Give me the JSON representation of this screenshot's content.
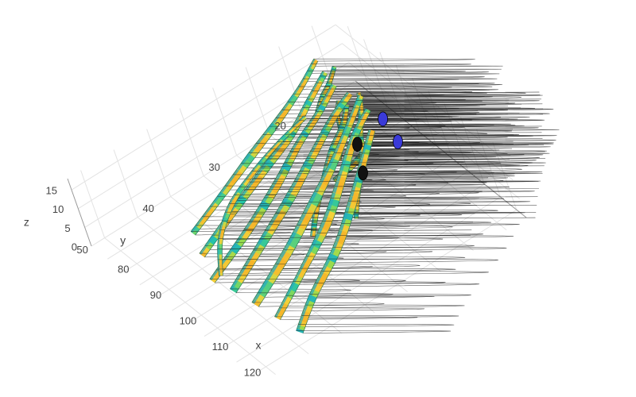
{
  "chart_data": {
    "type": "3d-streamtube",
    "title": "",
    "colorscale": [
      "#2f2fd0",
      "#2b8fd8",
      "#25c4a8",
      "#8fdc50",
      "#f2d23a",
      "#f5b52a"
    ],
    "grid": true,
    "axes": {
      "x": {
        "label": "x",
        "ticks": [
          80,
          90,
          100,
          110,
          120
        ],
        "range": [
          75,
          128
        ]
      },
      "y": {
        "label": "y",
        "ticks": [
          20,
          30,
          40,
          50
        ],
        "tick_labels": [
          "20",
          "30",
          "40",
          "50"
        ],
        "range": [
          12,
          52
        ]
      },
      "z": {
        "label": "z",
        "ticks": [
          0,
          5,
          10,
          15
        ],
        "range": [
          0,
          18
        ]
      }
    },
    "tubes": [
      {
        "points": [
          [
            124,
            44,
            2
          ],
          [
            118,
            39,
            2
          ],
          [
            111,
            32,
            2
          ],
          [
            104,
            26,
            3
          ],
          [
            97,
            21,
            3
          ],
          [
            92,
            17,
            4
          ]
        ],
        "widths": [
          9,
          10,
          11,
          11,
          9,
          8
        ]
      },
      {
        "points": [
          [
            120,
            45,
            4
          ],
          [
            114,
            38,
            5
          ],
          [
            107,
            31,
            5
          ],
          [
            100,
            25,
            6
          ],
          [
            94,
            20,
            7
          ],
          [
            90,
            16,
            7
          ]
        ],
        "widths": [
          8,
          9,
          12,
          11,
          9,
          7
        ]
      },
      {
        "points": [
          [
            116,
            46,
            6
          ],
          [
            110,
            38,
            7
          ],
          [
            104,
            31,
            8
          ],
          [
            98,
            25,
            8
          ],
          [
            93,
            20,
            9
          ],
          [
            89,
            16,
            10
          ]
        ],
        "widths": [
          10,
          12,
          12,
          10,
          8,
          7
        ]
      },
      {
        "points": [
          [
            112,
            47,
            8
          ],
          [
            106,
            39,
            9
          ],
          [
            100,
            32,
            9
          ],
          [
            95,
            26,
            10
          ],
          [
            91,
            21,
            11
          ],
          [
            88,
            17,
            11
          ]
        ],
        "widths": [
          9,
          11,
          12,
          10,
          9,
          8
        ]
      },
      {
        "points": [
          [
            108,
            48,
            9
          ],
          [
            103,
            40,
            10
          ],
          [
            98,
            33,
            11
          ],
          [
            93,
            27,
            12
          ],
          [
            89,
            22,
            12
          ],
          [
            86,
            18,
            13
          ]
        ],
        "widths": [
          8,
          10,
          11,
          9,
          8,
          7
        ]
      },
      {
        "points": [
          [
            104,
            47,
            12
          ],
          [
            99,
            40,
            12
          ],
          [
            95,
            33,
            13
          ],
          [
            91,
            27,
            13
          ],
          [
            87,
            22,
            14
          ],
          [
            84,
            18,
            15
          ]
        ],
        "widths": [
          8,
          9,
          10,
          9,
          8,
          7
        ]
      },
      {
        "points": [
          [
            100,
            46,
            14
          ],
          [
            96,
            40,
            14
          ],
          [
            92,
            33,
            15
          ],
          [
            88,
            27,
            15
          ],
          [
            85,
            22,
            16
          ],
          [
            82,
            18,
            17
          ]
        ],
        "widths": [
          7,
          8,
          10,
          9,
          7,
          6
        ]
      },
      {
        "points": [
          [
            109,
            47,
            10
          ],
          [
            104,
            44,
            13
          ],
          [
            100,
            40,
            15
          ],
          [
            97,
            35,
            16
          ],
          [
            95,
            30,
            17
          ],
          [
            93,
            25,
            17
          ]
        ],
        "widths": [
          5,
          6,
          7,
          6,
          5,
          5
        ]
      },
      {
        "points": [
          [
            106,
            33,
            3
          ],
          [
            102,
            30,
            5
          ],
          [
            99,
            27,
            7
          ],
          [
            96,
            24,
            9
          ],
          [
            94,
            21,
            11
          ],
          [
            92,
            19,
            13
          ]
        ],
        "widths": [
          6,
          7,
          8,
          8,
          7,
          6
        ]
      },
      {
        "points": [
          [
            110,
            28,
            5
          ],
          [
            105,
            25,
            6
          ],
          [
            101,
            22,
            8
          ],
          [
            97,
            20,
            10
          ],
          [
            94,
            18,
            12
          ],
          [
            92,
            17,
            14
          ]
        ],
        "widths": [
          5,
          6,
          7,
          7,
          6,
          5
        ]
      },
      {
        "points": [
          [
            96,
            25,
            2
          ],
          [
            95,
            22,
            2
          ],
          [
            94,
            20,
            2
          ],
          [
            93,
            18,
            3
          ]
        ],
        "widths": [
          8,
          8,
          7,
          6
        ]
      },
      {
        "points": [
          [
            94,
            23,
            4
          ],
          [
            92,
            21,
            7
          ],
          [
            90,
            20,
            10
          ],
          [
            89,
            19,
            12
          ]
        ],
        "widths": [
          6,
          6,
          5,
          5
        ]
      },
      {
        "points": [
          [
            88,
            22,
            11
          ],
          [
            86,
            20,
            12
          ],
          [
            84,
            18,
            12
          ],
          [
            82,
            16,
            13
          ]
        ],
        "widths": [
          5,
          6,
          6,
          5
        ]
      }
    ],
    "cones": [
      {
        "position": [
          106,
          24,
          10
        ],
        "color": "#111111"
      },
      {
        "position": [
          101,
          22,
          12
        ],
        "color": "#111111"
      },
      {
        "position": [
          98,
          16,
          4
        ],
        "color": "#3a3ad8"
      },
      {
        "position": [
          95,
          16,
          8
        ],
        "color": "#3a3ad8"
      }
    ]
  }
}
